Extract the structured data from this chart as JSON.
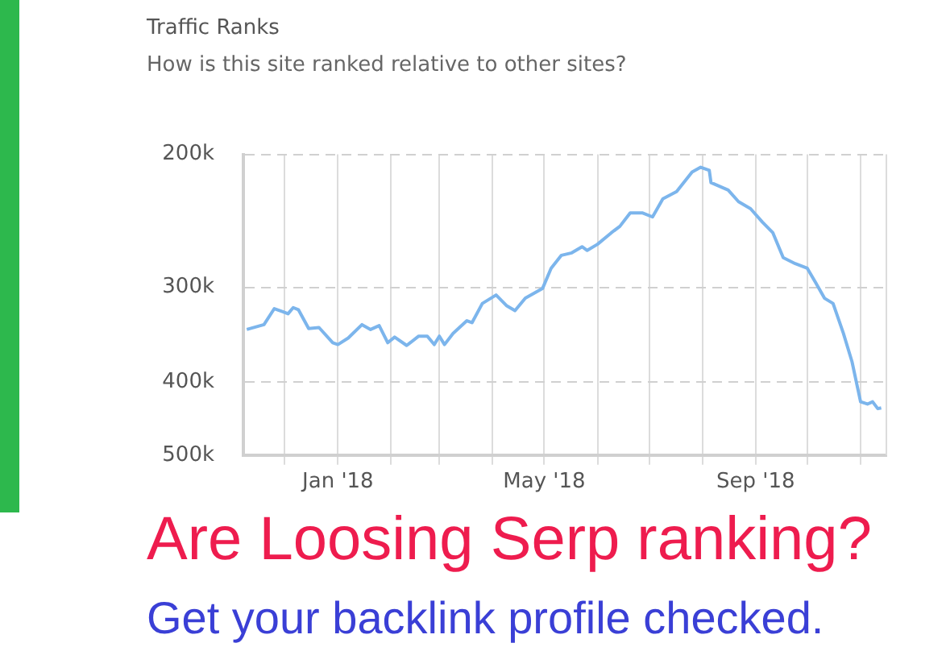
{
  "chart_data": {
    "type": "line",
    "title": "Traffic Ranks",
    "subtitle": "How is this site ranked relative to other sites?",
    "annotations": [
      "Are Loosing Serp ranking?",
      "Get your backlink profile checked."
    ],
    "x": [
      "2017-11-09",
      "2017-11-19",
      "2017-11-25",
      "2017-11-30",
      "2017-12-03",
      "2017-12-06",
      "2017-12-09",
      "2017-12-15",
      "2017-12-21",
      "2017-12-29",
      "2018-01-01",
      "2018-01-07",
      "2018-01-15",
      "2018-01-20",
      "2018-01-25",
      "2018-01-30",
      "2018-02-03",
      "2018-02-10",
      "2018-02-17",
      "2018-02-22",
      "2018-02-26",
      "2018-03-01",
      "2018-03-04",
      "2018-03-09",
      "2018-03-17",
      "2018-03-20",
      "2018-03-26",
      "2018-04-03",
      "2018-04-09",
      "2018-04-14",
      "2018-04-20",
      "2018-04-30",
      "2018-05-05",
      "2018-05-11",
      "2018-05-17",
      "2018-05-23",
      "2018-05-26",
      "2018-06-01",
      "2018-06-09",
      "2018-06-14",
      "2018-06-20",
      "2018-06-27",
      "2018-07-03",
      "2018-07-09",
      "2018-07-17",
      "2018-07-26",
      "2018-07-31",
      "2018-08-05",
      "2018-08-06",
      "2018-08-16",
      "2018-08-22",
      "2018-08-29",
      "2018-09-05",
      "2018-09-11",
      "2018-09-17",
      "2018-09-24",
      "2018-10-01",
      "2018-10-06",
      "2018-10-11",
      "2018-10-16",
      "2018-10-22",
      "2018-10-27",
      "2018-11-01",
      "2018-11-05",
      "2018-11-08",
      "2018-11-11",
      "2018-11-13"
    ],
    "series": [
      {
        "color": "#7cb5ec",
        "values": [
          341000,
          336000,
          320000,
          323000,
          325000,
          319000,
          321000,
          340000,
          339000,
          355000,
          357000,
          350000,
          336000,
          341000,
          337000,
          355000,
          349000,
          358000,
          348000,
          348000,
          357000,
          348000,
          357000,
          345000,
          332000,
          334000,
          315000,
          307000,
          317000,
          322000,
          310000,
          301000,
          283000,
          272000,
          270000,
          265000,
          268000,
          263000,
          254000,
          249000,
          239000,
          239000,
          242000,
          229000,
          224000,
          211000,
          208000,
          210000,
          218000,
          223000,
          231000,
          236000,
          246000,
          254000,
          274000,
          279000,
          283000,
          296000,
          310000,
          315000,
          345000,
          376000,
          425000,
          428000,
          425000,
          434000,
          433000
        ]
      }
    ],
    "log": true,
    "ylim": [
      500000,
      200000
    ],
    "yticks": [
      {
        "value": 200000,
        "label": "200k"
      },
      {
        "value": 300000,
        "label": "300k"
      },
      {
        "value": 400000,
        "label": "400k"
      },
      {
        "value": 500000,
        "label": "500k"
      }
    ],
    "xlim": [
      "2017-11-07",
      "2018-11-16"
    ],
    "xticks": [
      {
        "value": "2017-12-01",
        "label": null
      },
      {
        "value": "2018-01-01",
        "label": "Jan '18"
      },
      {
        "value": "2018-02-01",
        "label": null
      },
      {
        "value": "2018-03-01",
        "label": null
      },
      {
        "value": "2018-04-01",
        "label": null
      },
      {
        "value": "2018-05-01",
        "label": "May '18"
      },
      {
        "value": "2018-06-01",
        "label": null
      },
      {
        "value": "2018-07-01",
        "label": null
      },
      {
        "value": "2018-08-01",
        "label": null
      },
      {
        "value": "2018-09-01",
        "label": "Sep '18"
      },
      {
        "value": "2018-10-01",
        "label": null
      },
      {
        "value": "2018-11-01",
        "label": null
      }
    ],
    "grid": true,
    "legend": false,
    "marker": "none",
    "line_style": "solid"
  }
}
